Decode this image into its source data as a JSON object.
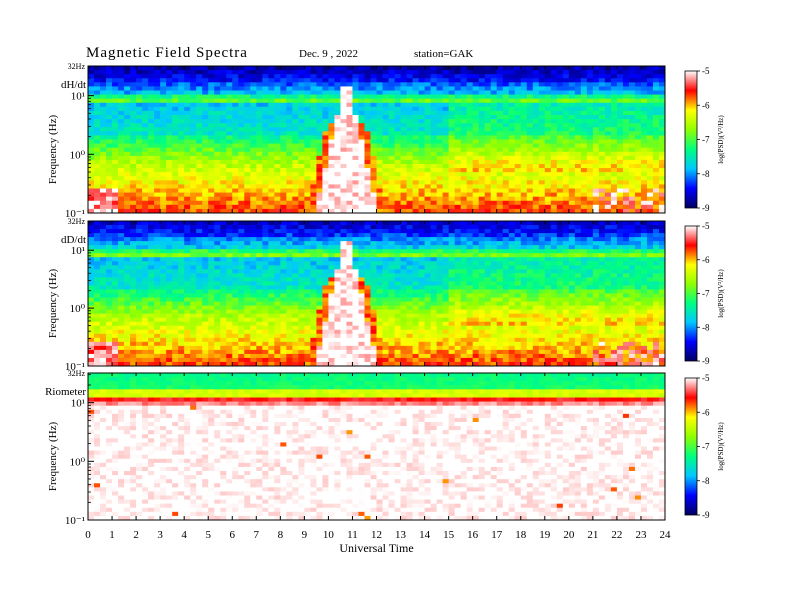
{
  "header": {
    "title": "Magnetic  Field  Spectra",
    "date": "Dec. 9  , 2022",
    "station": "station=GAK"
  },
  "colors": {
    "colormap": [
      "#000060",
      "#0000ff",
      "#00c8ff",
      "#00ff80",
      "#90ff00",
      "#ffff00",
      "#ff0000",
      "#ffffff"
    ]
  },
  "chart_data": [
    {
      "type": "heatmap",
      "panel_label": "dH/dt",
      "top_freq_label": "32Hz",
      "ylabel": "Frequency  (Hz)",
      "ytick_labels": [
        "10¹",
        "10⁰",
        "10⁻¹"
      ],
      "x_range": [
        0,
        24
      ],
      "y_range_hz": [
        0.1,
        32
      ],
      "y_scale": "log",
      "colorbar": {
        "range": [
          -9,
          -5
        ],
        "ticks": [
          "-5",
          "-6",
          "-7",
          "-8",
          "-9"
        ],
        "label": "log(PSD)(V²/Hz)"
      }
    },
    {
      "type": "heatmap",
      "panel_label": "dD/dt",
      "top_freq_label": "32Hz",
      "ylabel": "Frequency  (Hz)",
      "ytick_labels": [
        "10¹",
        "10⁰",
        "10⁻¹"
      ],
      "x_range": [
        0,
        24
      ],
      "y_range_hz": [
        0.1,
        32
      ],
      "y_scale": "log",
      "colorbar": {
        "range": [
          -9,
          -5
        ],
        "ticks": [
          "-5",
          "-6",
          "-7",
          "-8",
          "-9"
        ],
        "label": "log(PSD)(V²/Hz)"
      }
    },
    {
      "type": "heatmap",
      "panel_label": "Riometer",
      "top_freq_label": "32Hz",
      "ylabel": "Frequency  (Hz)",
      "ytick_labels": [
        "10¹",
        "10⁰",
        "10⁻¹"
      ],
      "x_range": [
        0,
        24
      ],
      "y_range_hz": [
        0.1,
        32
      ],
      "y_scale": "log",
      "colorbar": {
        "range": [
          -9,
          -5
        ],
        "ticks": [
          "-5",
          "-6",
          "-7",
          "-8",
          "-9"
        ],
        "label": "log(PSD)(V²/Hz)"
      }
    }
  ],
  "x_axis": {
    "label": "Universal  Time",
    "ticks": [
      0,
      1,
      2,
      3,
      4,
      5,
      6,
      7,
      8,
      9,
      10,
      11,
      12,
      13,
      14,
      15,
      16,
      17,
      18,
      19,
      20,
      21,
      22,
      23,
      24
    ]
  }
}
